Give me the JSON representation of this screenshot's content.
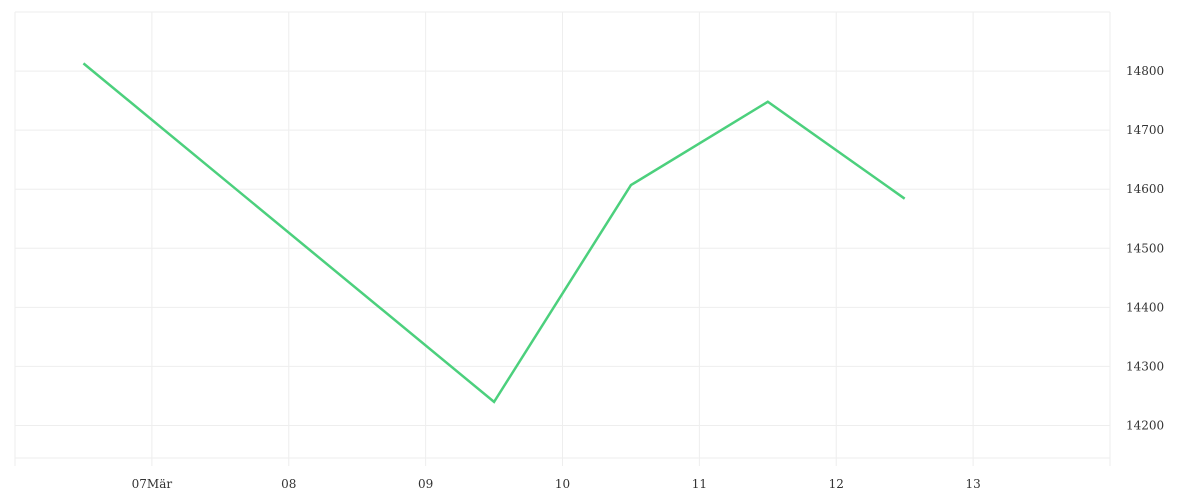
{
  "chart_data": {
    "type": "line",
    "title": "",
    "xlabel": "",
    "ylabel": "",
    "x_ticks": [
      {
        "day": 7,
        "label": "07Mär"
      },
      {
        "day": 8,
        "label": "08"
      },
      {
        "day": 9,
        "label": "09"
      },
      {
        "day": 10,
        "label": "10"
      },
      {
        "day": 11,
        "label": "11"
      },
      {
        "day": 12,
        "label": "12"
      },
      {
        "day": 13,
        "label": "13"
      }
    ],
    "y_ticks": [
      14200,
      14300,
      14400,
      14500,
      14600,
      14700,
      14800
    ],
    "xlim": [
      6,
      14
    ],
    "ylim": [
      14145,
      14900
    ],
    "grid": true,
    "y_axis_position": "right",
    "series": [
      {
        "color": "#4cd07d",
        "x": [
          6.5,
          9.5,
          10.5,
          11.5,
          12.5
        ],
        "values": [
          14813,
          14240,
          14607,
          14748,
          14584
        ]
      }
    ]
  }
}
